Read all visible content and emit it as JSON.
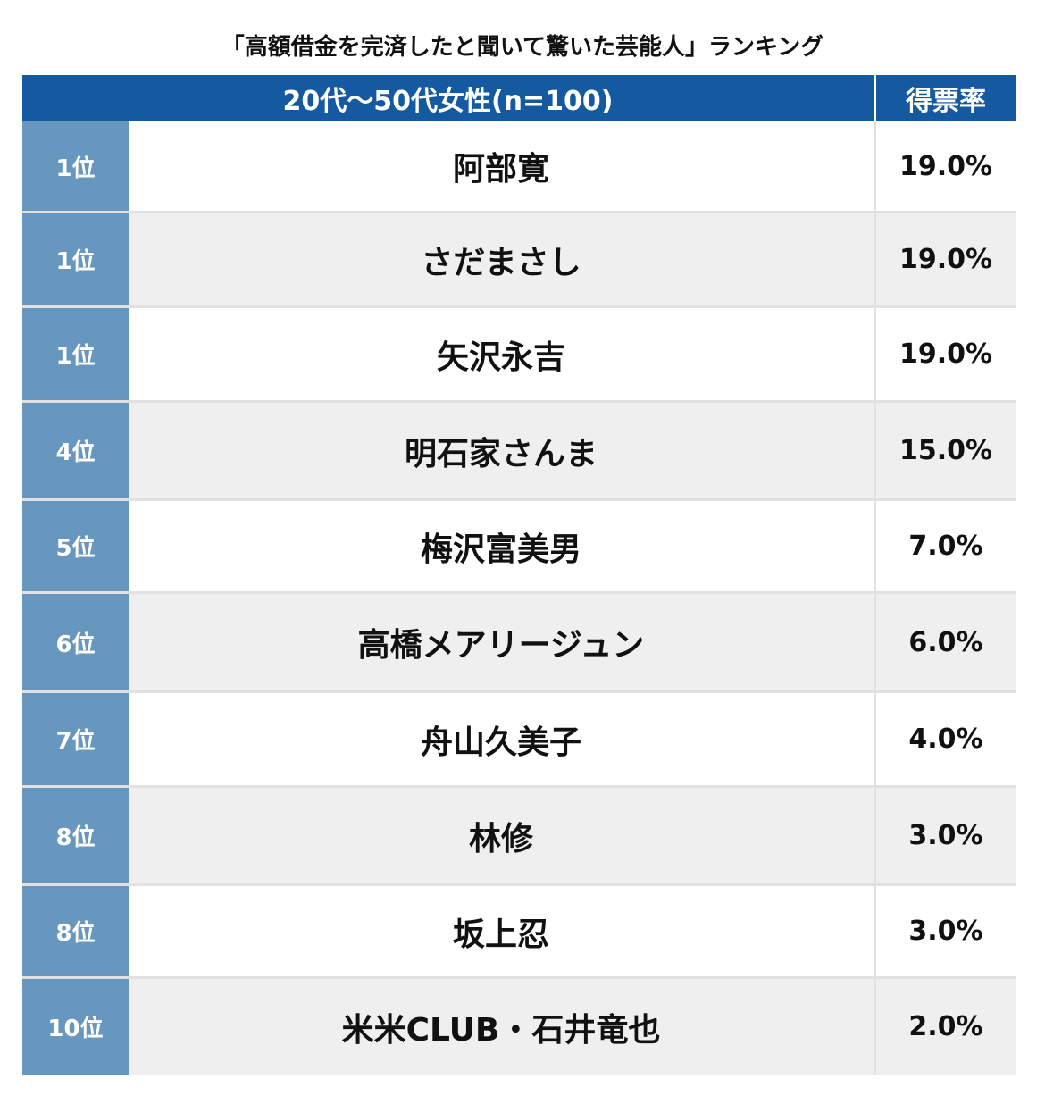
{
  "title": "「高額借金を完済したと聞いて驚いた芸能人」ランキング",
  "colors": {
    "header": "#155aa0",
    "rank_column": "#6796bf",
    "row_alt": "#efefef",
    "row": "#ffffff"
  },
  "chart_data": {
    "type": "table",
    "title": "「高額借金を完済したと聞いて驚いた芸能人」ランキング",
    "columns": [
      "20代〜50代女性(n=100)",
      "得票率"
    ],
    "rows": [
      {
        "rank": "1位",
        "name": "阿部寛",
        "share": "19.0%",
        "value": 19.0
      },
      {
        "rank": "1位",
        "name": "さだまさし",
        "share": "19.0%",
        "value": 19.0
      },
      {
        "rank": "1位",
        "name": "矢沢永吉",
        "share": "19.0%",
        "value": 19.0
      },
      {
        "rank": "4位",
        "name": "明石家さんま",
        "share": "15.0%",
        "value": 15.0
      },
      {
        "rank": "5位",
        "name": "梅沢富美男",
        "share": "7.0%",
        "value": 7.0
      },
      {
        "rank": "6位",
        "name": "高橋メアリージュン",
        "share": "6.0%",
        "value": 6.0
      },
      {
        "rank": "7位",
        "name": "舟山久美子",
        "share": "4.0%",
        "value": 4.0
      },
      {
        "rank": "8位",
        "name": "林修",
        "share": "3.0%",
        "value": 3.0
      },
      {
        "rank": "8位",
        "name": "坂上忍",
        "share": "3.0%",
        "value": 3.0
      },
      {
        "rank": "10位",
        "name": "米米CLUB・石井竜也",
        "share": "2.0%",
        "value": 2.0
      }
    ]
  }
}
